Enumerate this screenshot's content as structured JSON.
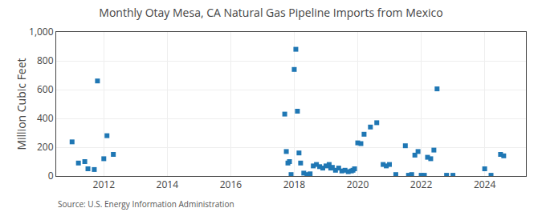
{
  "chart_data": {
    "type": "scatter",
    "title": "Monthly Otay Mesa, CA Natural Gas Pipeline Imports from Mexico",
    "ylabel": "Million Cubic Feet",
    "annotations": [
      "Source: U.S. Energy Information Administration"
    ],
    "marker": "square",
    "grid": true,
    "xlim": [
      2010.5,
      2025.3
    ],
    "xticks": [
      2012,
      2014,
      2016,
      2018,
      2020,
      2022,
      2024
    ],
    "ylim": [
      0,
      1000
    ],
    "yticks": [
      0,
      200,
      400,
      600,
      800,
      {
        "value": 1000,
        "label": "1,000"
      }
    ],
    "x": [
      2011.0,
      2011.2,
      2011.4,
      2011.5,
      2011.7,
      2011.8,
      2012.0,
      2012.1,
      2012.3,
      2017.7,
      2017.75,
      2017.8,
      2017.85,
      2017.9,
      2018.0,
      2018.05,
      2018.1,
      2018.15,
      2018.2,
      2018.3,
      2018.4,
      2018.5,
      2018.6,
      2018.7,
      2018.8,
      2018.9,
      2019.0,
      2019.1,
      2019.15,
      2019.2,
      2019.3,
      2019.4,
      2019.5,
      2019.6,
      2019.7,
      2019.8,
      2019.85,
      2019.9,
      2020.0,
      2020.1,
      2020.2,
      2020.4,
      2020.6,
      2020.8,
      2020.9,
      2021.0,
      2021.2,
      2021.5,
      2021.6,
      2021.7,
      2021.8,
      2021.9,
      2022.0,
      2022.1,
      2022.2,
      2022.3,
      2022.4,
      2022.5,
      2022.8,
      2023.0,
      2024.0,
      2024.2,
      2024.5,
      2024.6
    ],
    "values": [
      237,
      90,
      100,
      50,
      45,
      660,
      120,
      280,
      150,
      430,
      170,
      90,
      100,
      10,
      740,
      880,
      450,
      160,
      90,
      20,
      10,
      15,
      70,
      80,
      65,
      55,
      70,
      80,
      55,
      60,
      40,
      55,
      35,
      40,
      30,
      35,
      40,
      50,
      230,
      225,
      290,
      340,
      370,
      80,
      70,
      80,
      10,
      210,
      5,
      10,
      145,
      170,
      5,
      5,
      130,
      120,
      180,
      605,
      5,
      5,
      50,
      5,
      150,
      140
    ]
  }
}
